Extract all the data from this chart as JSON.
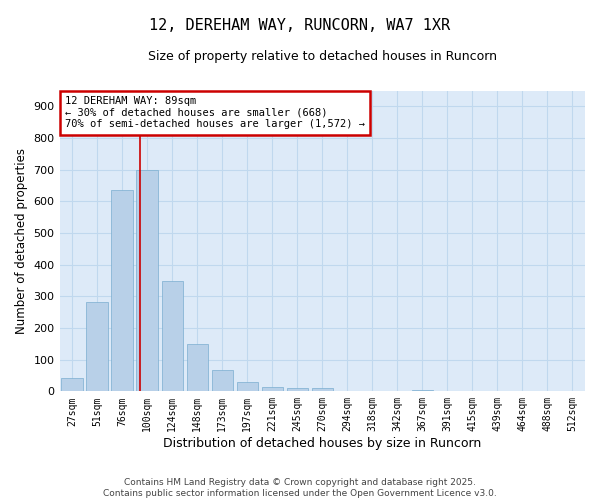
{
  "title": "12, DEREHAM WAY, RUNCORN, WA7 1XR",
  "subtitle": "Size of property relative to detached houses in Runcorn",
  "xlabel": "Distribution of detached houses by size in Runcorn",
  "ylabel": "Number of detached properties",
  "categories": [
    "27sqm",
    "51sqm",
    "76sqm",
    "100sqm",
    "124sqm",
    "148sqm",
    "173sqm",
    "197sqm",
    "221sqm",
    "245sqm",
    "270sqm",
    "294sqm",
    "318sqm",
    "342sqm",
    "367sqm",
    "391sqm",
    "415sqm",
    "439sqm",
    "464sqm",
    "488sqm",
    "512sqm"
  ],
  "values": [
    42,
    283,
    635,
    700,
    350,
    148,
    68,
    28,
    15,
    11,
    9,
    0,
    0,
    0,
    5,
    0,
    0,
    0,
    0,
    0,
    0
  ],
  "bar_color": "#b8d0e8",
  "bar_edge_color": "#7aaed0",
  "grid_color": "#c0d8ee",
  "background_color": "#ddeaf8",
  "vline_x": 2.7,
  "vline_color": "#cc0000",
  "annotation_title": "12 DEREHAM WAY: 89sqm",
  "annotation_line2": "← 30% of detached houses are smaller (668)",
  "annotation_line3": "70% of semi-detached houses are larger (1,572) →",
  "annotation_box_color": "#cc0000",
  "ylim": [
    0,
    950
  ],
  "yticks": [
    0,
    100,
    200,
    300,
    400,
    500,
    600,
    700,
    800,
    900
  ],
  "footer": "Contains HM Land Registry data © Crown copyright and database right 2025.\nContains public sector information licensed under the Open Government Licence v3.0."
}
